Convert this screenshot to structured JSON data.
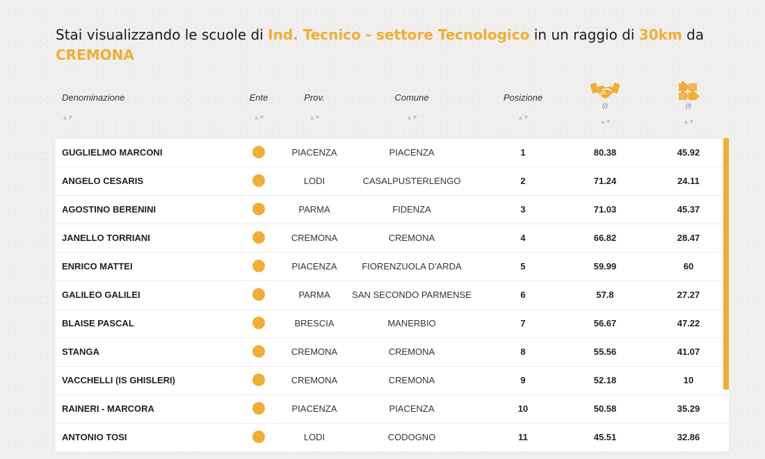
{
  "title": {
    "prefix": "Stai visualizzando le scuole di ",
    "school_type": "Ind. Tecnico - settore Tecnologico",
    "middle": " in un raggio di ",
    "radius": "30km",
    "connector": " da ",
    "city": "CREMONA"
  },
  "header": {
    "denominazione": "Denominazione",
    "ente": "Ente",
    "prov": "Prov.",
    "comune": "Comune",
    "posizione": "Posizione",
    "metric1_icon": "handshake-icon",
    "metric2_icon": "puzzle-icon",
    "info": "(i)",
    "sort_glyph": "▲▼"
  },
  "colors": {
    "accent": "#f0ad37"
  },
  "rows": [
    {
      "name": "GUGLIELMO MARCONI",
      "prov": "PIACENZA",
      "comune": "PIACENZA",
      "pos": "1",
      "m1": "80.38",
      "m2": "45.92"
    },
    {
      "name": "ANGELO CESARIS",
      "prov": "LODI",
      "comune": "CASALPUSTERLENGO",
      "pos": "2",
      "m1": "71.24",
      "m2": "24.11"
    },
    {
      "name": "AGOSTINO BERENINI",
      "prov": "PARMA",
      "comune": "FIDENZA",
      "pos": "3",
      "m1": "71.03",
      "m2": "45.37"
    },
    {
      "name": "JANELLO TORRIANI",
      "prov": "CREMONA",
      "comune": "CREMONA",
      "pos": "4",
      "m1": "66.82",
      "m2": "28.47"
    },
    {
      "name": "ENRICO MATTEI",
      "prov": "PIACENZA",
      "comune": "FIORENZUOLA D'ARDA",
      "pos": "5",
      "m1": "59.99",
      "m2": "60"
    },
    {
      "name": "GALILEO GALILEI",
      "prov": "PARMA",
      "comune": "SAN SECONDO PARMENSE",
      "pos": "6",
      "m1": "57.8",
      "m2": "27.27"
    },
    {
      "name": "BLAISE PASCAL",
      "prov": "BRESCIA",
      "comune": "MANERBIO",
      "pos": "7",
      "m1": "56.67",
      "m2": "47.22"
    },
    {
      "name": "STANGA",
      "prov": "CREMONA",
      "comune": "CREMONA",
      "pos": "8",
      "m1": "55.56",
      "m2": "41.07"
    },
    {
      "name": "VACCHELLI (IS GHISLERI)",
      "prov": "CREMONA",
      "comune": "CREMONA",
      "pos": "9",
      "m1": "52.18",
      "m2": "10"
    },
    {
      "name": "RAINERI - MARCORA",
      "prov": "PIACENZA",
      "comune": "PIACENZA",
      "pos": "10",
      "m1": "50.58",
      "m2": "35.29"
    },
    {
      "name": "ANTONIO TOSI",
      "prov": "LODI",
      "comune": "CODOGNO",
      "pos": "11",
      "m1": "45.51",
      "m2": "32.86"
    }
  ]
}
